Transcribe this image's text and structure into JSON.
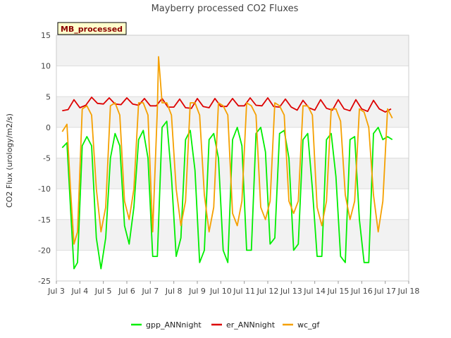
{
  "chart_data": {
    "type": "line",
    "title": "Mayberry processed CO2 Fluxes",
    "badge": "MB_processed",
    "xlabel": "",
    "ylabel": "CO2 Flux (urology/m2/s)",
    "xlim": [
      3,
      18
    ],
    "ylim": [
      -25,
      15
    ],
    "x_ticks": [
      {
        "value": 3,
        "label": "Jul 3"
      },
      {
        "value": 4,
        "label": "Jul 4"
      },
      {
        "value": 5,
        "label": "Jul 5"
      },
      {
        "value": 6,
        "label": "Jul 6"
      },
      {
        "value": 7,
        "label": "Jul 7"
      },
      {
        "value": 8,
        "label": "Jul 8"
      },
      {
        "value": 9,
        "label": "Jul 9"
      },
      {
        "value": 10,
        "label": "Jul 10"
      },
      {
        "value": 11,
        "label": "Jul 11"
      },
      {
        "value": 12,
        "label": "Jul 12"
      },
      {
        "value": 13,
        "label": "Jul 13"
      },
      {
        "value": 14,
        "label": "Jul 14"
      },
      {
        "value": 15,
        "label": "Jul 15"
      },
      {
        "value": 16,
        "label": "Jul 16"
      },
      {
        "value": 17,
        "label": "Jul 17"
      },
      {
        "value": 18,
        "label": "Jul 18"
      }
    ],
    "y_ticks": [
      {
        "value": 15,
        "label": "15"
      },
      {
        "value": 10,
        "label": "10"
      },
      {
        "value": 5,
        "label": "5"
      },
      {
        "value": 0,
        "label": "0"
      },
      {
        "value": -5,
        "label": "-5"
      },
      {
        "value": -10,
        "label": "-10"
      },
      {
        "value": -15,
        "label": "-15"
      },
      {
        "value": -20,
        "label": "-20"
      },
      {
        "value": -25,
        "label": "-25"
      }
    ],
    "grid": true,
    "legend_position": "bottom-center",
    "colors": {
      "band": "#f2f2f2",
      "grid": "#dddddd",
      "axis": "#cccccc",
      "badge_fill": "#ffffcc",
      "badge_stroke": "#000000"
    },
    "series": [
      {
        "name": "gpp_ANNnight",
        "color": "#00ee00",
        "x": [
          3.25,
          3.45,
          3.6,
          3.75,
          3.9,
          4.1,
          4.3,
          4.5,
          4.7,
          4.9,
          5.1,
          5.3,
          5.5,
          5.7,
          5.9,
          6.1,
          6.3,
          6.5,
          6.7,
          6.9,
          7.1,
          7.3,
          7.5,
          7.7,
          7.9,
          8.1,
          8.3,
          8.5,
          8.7,
          8.9,
          9.1,
          9.3,
          9.5,
          9.7,
          9.9,
          10.1,
          10.3,
          10.5,
          10.7,
          10.9,
          11.1,
          11.3,
          11.5,
          11.7,
          11.9,
          12.1,
          12.3,
          12.5,
          12.7,
          12.9,
          13.1,
          13.3,
          13.5,
          13.7,
          13.9,
          14.1,
          14.3,
          14.5,
          14.7,
          14.9,
          15.1,
          15.3,
          15.5,
          15.7,
          15.9,
          16.1,
          16.3,
          16.5,
          16.7,
          16.9,
          17.1,
          17.3
        ],
        "y": [
          -3.3,
          -2.5,
          -13,
          -23,
          -22,
          -3,
          -1.5,
          -3,
          -18,
          -23,
          -18,
          -5,
          -1,
          -3,
          -16,
          -19,
          -13,
          -2,
          -0.5,
          -5,
          -21,
          -21,
          0,
          1,
          -8,
          -21,
          -18,
          -2,
          -0.5,
          -7,
          -22,
          -20,
          -2,
          -1,
          -5,
          -20,
          -22,
          -2,
          0,
          -3,
          -20,
          -20,
          -1,
          0,
          -4,
          -19,
          -18,
          -1,
          -0.5,
          -5,
          -20,
          -19,
          -2,
          -1,
          -10,
          -21,
          -21,
          -2,
          -1,
          -8,
          -21,
          -22,
          -2,
          -1.5,
          -15,
          -22,
          -22,
          -1,
          0,
          -2,
          -1.5,
          -2
        ]
      },
      {
        "name": "er_ANNnight",
        "color": "#dd0000",
        "x": [
          3.25,
          3.5,
          3.75,
          4.0,
          4.25,
          4.5,
          4.75,
          5.0,
          5.25,
          5.5,
          5.75,
          6.0,
          6.25,
          6.5,
          6.75,
          7.0,
          7.25,
          7.5,
          7.75,
          8.0,
          8.25,
          8.5,
          8.75,
          9.0,
          9.25,
          9.5,
          9.75,
          10.0,
          10.25,
          10.5,
          10.75,
          11.0,
          11.25,
          11.5,
          11.75,
          12.0,
          12.25,
          12.5,
          12.75,
          13.0,
          13.25,
          13.5,
          13.75,
          14.0,
          14.25,
          14.5,
          14.75,
          15.0,
          15.25,
          15.5,
          15.75,
          16.0,
          16.25,
          16.5,
          16.75,
          17.0,
          17.25
        ],
        "y": [
          2.7,
          2.9,
          4.5,
          3.2,
          3.6,
          4.9,
          3.9,
          3.8,
          4.8,
          3.8,
          3.7,
          4.8,
          3.8,
          3.6,
          4.7,
          3.5,
          3.5,
          4.7,
          3.3,
          3.3,
          4.6,
          3.2,
          3.1,
          4.7,
          3.4,
          3.2,
          4.7,
          3.4,
          3.4,
          4.7,
          3.5,
          3.5,
          4.8,
          3.6,
          3.5,
          4.8,
          3.4,
          3.3,
          4.6,
          3.3,
          2.8,
          4.4,
          3.2,
          2.8,
          4.5,
          3.1,
          2.8,
          4.5,
          3.0,
          2.7,
          4.5,
          3.0,
          2.6,
          4.4,
          3.0,
          2.5,
          3.0
        ]
      },
      {
        "name": "wc_gf",
        "color": "#f5a000",
        "x": [
          3.25,
          3.45,
          3.6,
          3.75,
          3.9,
          4.1,
          4.3,
          4.5,
          4.7,
          4.9,
          5.1,
          5.3,
          5.5,
          5.7,
          5.9,
          6.1,
          6.3,
          6.5,
          6.7,
          6.9,
          7.1,
          7.3,
          7.35,
          7.5,
          7.7,
          7.9,
          8.1,
          8.3,
          8.5,
          8.7,
          8.9,
          9.1,
          9.3,
          9.5,
          9.7,
          9.9,
          10.1,
          10.3,
          10.5,
          10.7,
          10.9,
          11.1,
          11.3,
          11.5,
          11.7,
          11.9,
          12.1,
          12.3,
          12.5,
          12.7,
          12.9,
          13.1,
          13.3,
          13.5,
          13.7,
          13.9,
          14.1,
          14.3,
          14.5,
          14.7,
          14.9,
          15.1,
          15.3,
          15.5,
          15.7,
          15.9,
          16.1,
          16.3,
          16.5,
          16.7,
          16.9,
          17.1,
          17.3
        ],
        "y": [
          -0.7,
          0.5,
          -10,
          -19,
          -17,
          3,
          3.5,
          2,
          -10,
          -17,
          -13,
          3.5,
          4,
          2,
          -12,
          -15,
          -10,
          4,
          4,
          2,
          -17,
          3,
          11.5,
          4,
          4,
          2,
          -10,
          -16,
          -12,
          4,
          4,
          2,
          -11,
          -17,
          -13,
          4,
          3.5,
          2,
          -14,
          -16,
          -12,
          4,
          3.5,
          2,
          -13,
          -15,
          -12,
          4,
          3.5,
          2,
          -12,
          -14,
          -12,
          3.5,
          3.5,
          2,
          -13,
          -16,
          -12,
          3,
          3,
          1,
          -11,
          -15,
          -12,
          3,
          2.5,
          0,
          -11,
          -17,
          -12,
          3,
          1.5
        ]
      }
    ]
  }
}
